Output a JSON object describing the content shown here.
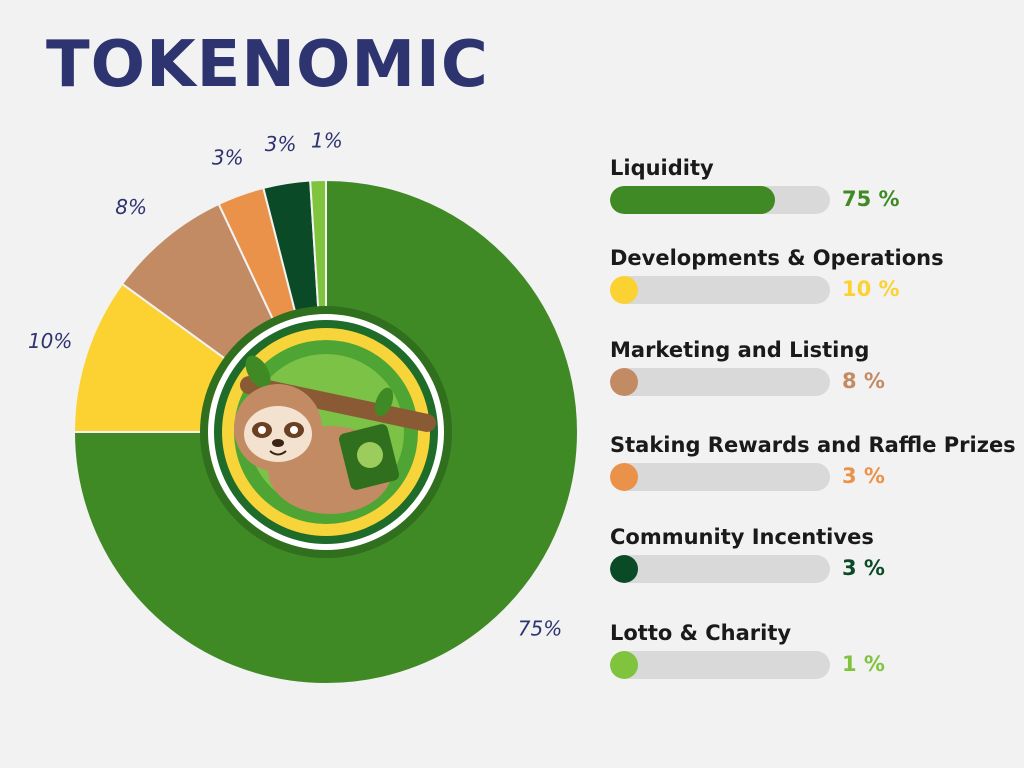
{
  "chart_data": {
    "type": "pie",
    "title": "TOKENOMIC",
    "categories": [
      "Liquidity",
      "Developments & Operations",
      "Marketing and Listing",
      "Staking Rewards and Raffle Prizes",
      "Community Incentives",
      "Lotto & Charity"
    ],
    "values": [
      75,
      10,
      8,
      3,
      3,
      1
    ],
    "slice_labels": [
      "75%",
      "10%",
      "8%",
      "3%",
      "3%",
      "1%"
    ],
    "value_labels": [
      "75 %",
      "10 %",
      "8 %",
      "3 %",
      "3 %",
      "1 %"
    ],
    "colors": [
      "#3f8a24",
      "#fcd232",
      "#c38b63",
      "#ea924a",
      "#0b4a26",
      "#7fc43c"
    ],
    "legend_placement": "right"
  }
}
